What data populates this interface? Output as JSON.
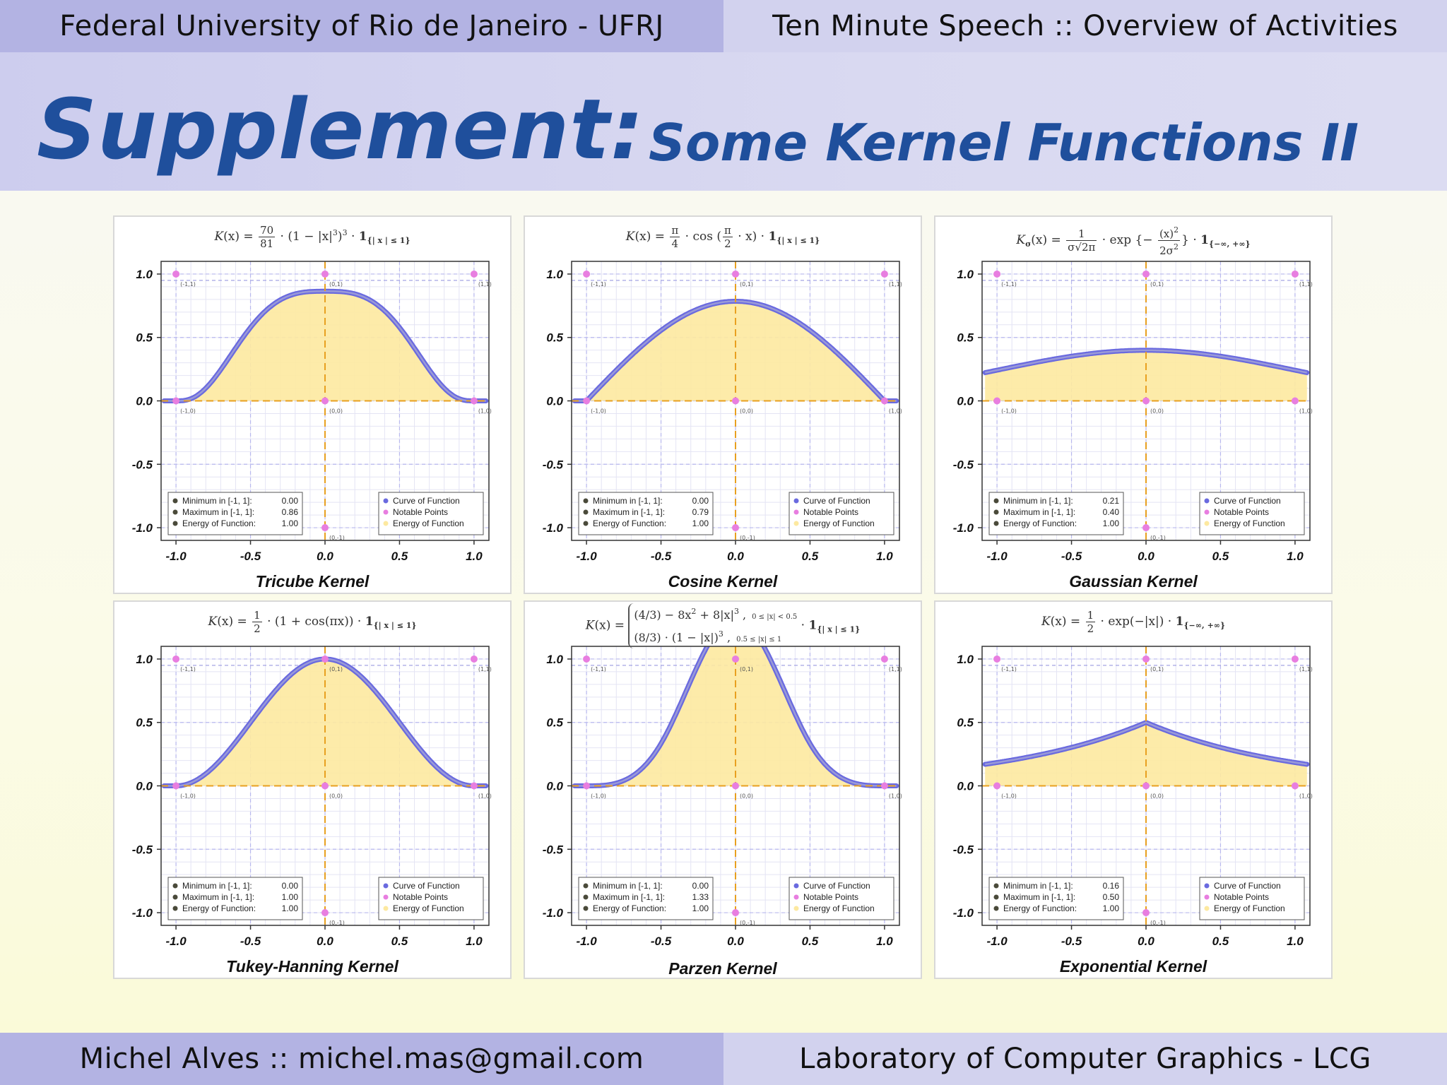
{
  "header": {
    "left": "Federal University of Rio de Janeiro - UFRJ",
    "right": "Ten Minute Speech :: Overview of Activities"
  },
  "title": {
    "main": "Supplement:",
    "sub": "Some Kernel Functions II"
  },
  "footer": {
    "left": "Michel Alves :: michel.mas@gmail.com",
    "right": "Laboratory of Computer Graphics - LCG"
  },
  "common": {
    "x_ticks": [
      "-1.0",
      "-0.5",
      "0.0",
      "0.5",
      "1.0"
    ],
    "y_ticks": [
      "1.0",
      "0.5",
      "0.0",
      "-0.5",
      "-1.0"
    ],
    "legend_labels": [
      "Curve of Function",
      "Notable Points",
      "Energy of Function"
    ],
    "stat_labels": [
      "Minimum in [-1, 1]:",
      "Maximum in [-1, 1]:",
      "Energy of Function:"
    ],
    "notable_point_labels": [
      "(-1,1)",
      "(0,1)",
      "(1,1)",
      "(-1,0)",
      "(0,0)",
      "(1,0)",
      "(0,-1)"
    ],
    "colors": {
      "curve": "#6a6adf",
      "curve_inner": "#9a9ad8",
      "fill": "#fde9a0",
      "points": "#e87ee0",
      "axis": "#e8a020",
      "grid": "#b8b8ee"
    }
  },
  "chart_data": [
    {
      "type": "area",
      "name": "tricube",
      "title": "Tricube Kernel",
      "xlim": [
        -1.1,
        1.1
      ],
      "ylim": [
        -1.1,
        1.1
      ],
      "stats": [
        "0.00",
        "0.86",
        "1.00"
      ]
    },
    {
      "type": "area",
      "name": "cosine",
      "title": "Cosine Kernel",
      "xlim": [
        -1.1,
        1.1
      ],
      "ylim": [
        -1.1,
        1.1
      ],
      "stats": [
        "0.00",
        "0.79",
        "1.00"
      ]
    },
    {
      "type": "area",
      "name": "gaussian",
      "title": "Gaussian Kernel",
      "xlim": [
        -1.1,
        1.1
      ],
      "ylim": [
        -1.1,
        1.1
      ],
      "stats": [
        "0.21",
        "0.40",
        "1.00"
      ]
    },
    {
      "type": "area",
      "name": "tukey-hanning",
      "title": "Tukey-Hanning Kernel",
      "xlim": [
        -1.1,
        1.1
      ],
      "ylim": [
        -1.1,
        1.1
      ],
      "stats": [
        "0.00",
        "1.00",
        "1.00"
      ]
    },
    {
      "type": "area",
      "name": "parzen",
      "title": "Parzen Kernel",
      "xlim": [
        -1.1,
        1.1
      ],
      "ylim": [
        -1.1,
        1.1
      ],
      "stats": [
        "0.00",
        "1.33",
        "1.00"
      ]
    },
    {
      "type": "area",
      "name": "exponential",
      "title": "Exponential Kernel",
      "xlim": [
        -1.1,
        1.1
      ],
      "ylim": [
        -1.1,
        1.1
      ],
      "stats": [
        "0.16",
        "0.50",
        "1.00"
      ]
    }
  ]
}
